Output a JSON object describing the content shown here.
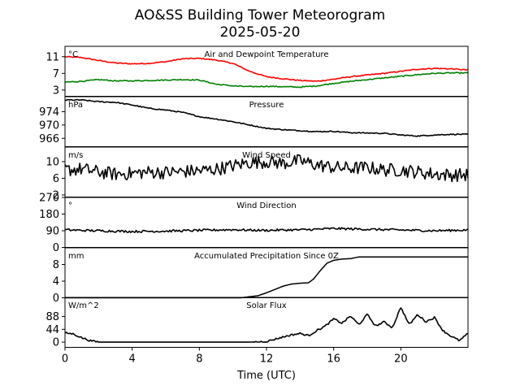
{
  "figure": {
    "title_line1": "AO&SS Building Tower Meteorogram",
    "title_line2": "2025-05-20",
    "xlabel": "Time (UTC)"
  },
  "chart_data": {
    "type": "line",
    "x_range": [
      0,
      24
    ],
    "x_ticks": [
      0,
      4,
      8,
      12,
      16,
      20
    ],
    "xlabel": "Time (UTC)",
    "panels": [
      {
        "title": "Air and Dewpoint Temperature",
        "unit": "°C",
        "ylim": [
          1.5,
          13.5
        ],
        "yticks": [
          3,
          7,
          11
        ],
        "series": [
          {
            "color": "#ff0000",
            "x": [
              0,
              1,
              2,
              3,
              4,
              5,
              6,
              7,
              8,
              9,
              10,
              11,
              12,
              13,
              14,
              15,
              16,
              17,
              18,
              19,
              20,
              21,
              22,
              23,
              24
            ],
            "values": [
              11,
              10.8,
              10.1,
              9.5,
              9.3,
              9.4,
              9.8,
              10.5,
              10.6,
              10.2,
              9.4,
              7.5,
              6.2,
              5.7,
              5.3,
              5.1,
              5.6,
              6.2,
              6.6,
              7.0,
              7.5,
              8.0,
              8.2,
              8.1,
              7.8
            ]
          },
          {
            "color": "#008000",
            "x": [
              0,
              1,
              2,
              3,
              4,
              5,
              6,
              7,
              8,
              9,
              10,
              11,
              12,
              13,
              14,
              15,
              16,
              17,
              18,
              19,
              20,
              21,
              22,
              23,
              24
            ],
            "values": [
              4.9,
              5.1,
              5.5,
              5.2,
              5.2,
              5.3,
              5.4,
              5.5,
              5.4,
              4.4,
              4.0,
              3.8,
              3.9,
              3.8,
              3.7,
              4.0,
              4.6,
              5.1,
              5.5,
              5.9,
              6.3,
              6.7,
              7.0,
              7.1,
              7.1
            ]
          }
        ]
      },
      {
        "title": "Pressure",
        "unit": "hPa",
        "ylim": [
          963.5,
          978.5
        ],
        "yticks": [
          966,
          970,
          974
        ],
        "series": [
          {
            "color": "#000000",
            "x": [
              0,
              1,
              2,
              3,
              4,
              5,
              6,
              7,
              8,
              9,
              10,
              11,
              12,
              13,
              14,
              15,
              16,
              17,
              18,
              19,
              20,
              21,
              22,
              23,
              24
            ],
            "values": [
              977.5,
              977.5,
              977.0,
              976.8,
              976.0,
              975.0,
              974.5,
              973.8,
              972.5,
              971.8,
              971.0,
              970.0,
              969.0,
              968.6,
              968.3,
              968.0,
              968.1,
              967.7,
              967.6,
              967.5,
              967.0,
              966.7,
              967.0,
              967.2,
              967.2
            ]
          }
        ]
      },
      {
        "title": "Wind Speed",
        "unit": "m/s",
        "ylim": [
          1.5,
          13.5
        ],
        "yticks": [
          2,
          6,
          10
        ],
        "series": [
          {
            "color": "#000000",
            "x": [
              0,
              1,
              2,
              3,
              4,
              5,
              6,
              7,
              8,
              9,
              10,
              11,
              12,
              13,
              14,
              15,
              16,
              17,
              18,
              19,
              20,
              21,
              22,
              23,
              24
            ],
            "values": [
              8,
              8.2,
              7.5,
              7.0,
              7.2,
              7.5,
              7.4,
              7.6,
              7.8,
              8.2,
              9.0,
              9.8,
              10.0,
              9.6,
              10.2,
              9.2,
              8.6,
              8.4,
              8.6,
              8.0,
              8.0,
              7.5,
              7.0,
              6.8,
              6.8
            ]
          }
        ]
      },
      {
        "title": "Wind Direction",
        "unit": "°",
        "ylim": [
          0,
          270
        ],
        "yticks": [
          0,
          90,
          180,
          270
        ],
        "series": [
          {
            "color": "#000000",
            "x": [
              0,
              1,
              2,
              3,
              4,
              5,
              6,
              7,
              8,
              9,
              10,
              11,
              12,
              13,
              14,
              15,
              16,
              17,
              18,
              19,
              20,
              21,
              22,
              23,
              24
            ],
            "values": [
              95,
              92,
              90,
              88,
              86,
              87,
              88,
              90,
              92,
              94,
              96,
              93,
              92,
              94,
              95,
              98,
              102,
              100,
              98,
              96,
              94,
              92,
              90,
              92,
              94
            ]
          }
        ]
      },
      {
        "title": "Accumulated Precipitation Since 0Z",
        "unit": "mm",
        "ylim": [
          0,
          12
        ],
        "yticks": [
          0,
          4,
          8
        ],
        "series": [
          {
            "color": "#000000",
            "x": [
              0,
              10.5,
              11.5,
              12,
              12.5,
              13,
              13.5,
              14,
              14.5,
              14.8,
              15.2,
              15.6,
              16,
              16.5,
              17,
              17.5,
              24
            ],
            "values": [
              0,
              0,
              0.5,
              1.2,
              2.0,
              2.8,
              3.3,
              3.5,
              3.6,
              4.5,
              6.5,
              8.3,
              9.0,
              9.3,
              9.4,
              9.8,
              9.8
            ]
          }
        ]
      },
      {
        "title": "Solar Flux",
        "unit": "W/m^2",
        "ylim": [
          -18,
          154
        ],
        "yticks": [
          0,
          44,
          88
        ],
        "series": [
          {
            "color": "#000000",
            "x": [
              0,
              0.5,
              1,
              1.5,
              2,
              4,
              6,
              8,
              10,
              11,
              12,
              12.5,
              13,
              13.5,
              14,
              14.5,
              15,
              15.5,
              16,
              16.5,
              17,
              17.5,
              18,
              18.5,
              19,
              19.5,
              20,
              20.5,
              21,
              21.5,
              22,
              22.5,
              23,
              23.5,
              24
            ],
            "values": [
              32,
              28,
              15,
              5,
              0,
              0,
              0,
              0,
              0,
              0,
              2,
              10,
              18,
              25,
              30,
              22,
              40,
              55,
              80,
              65,
              90,
              60,
              95,
              55,
              70,
              50,
              120,
              60,
              95,
              70,
              85,
              40,
              20,
              5,
              30
            ]
          }
        ]
      }
    ]
  }
}
